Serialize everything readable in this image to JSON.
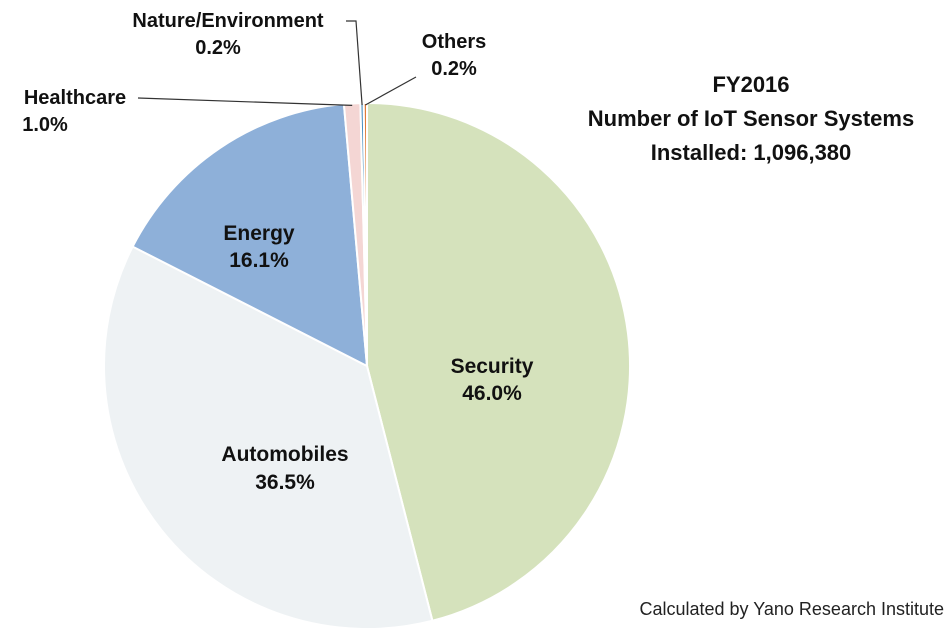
{
  "chart_data": {
    "type": "pie",
    "title_lines": [
      "FY2016",
      "Number of IoT Sensor Systems",
      "Installed: 1,096,380"
    ],
    "source": "Calculated by Yano Research Institute",
    "start_angle_deg": 0,
    "direction": "clockwise",
    "slices": [
      {
        "name": "Security",
        "value": 46.0,
        "label": "46.0%",
        "color": "#d5e2bc"
      },
      {
        "name": "Automobiles",
        "value": 36.5,
        "label": "36.5%",
        "color": "#eef2f4"
      },
      {
        "name": "Energy",
        "value": 16.1,
        "label": "16.1%",
        "color": "#8eb0d9"
      },
      {
        "name": "Healthcare",
        "value": 1.0,
        "label": "1.0%",
        "color": "#f4d6d4"
      },
      {
        "name": "Nature/Environment",
        "value": 0.2,
        "label": "0.2%",
        "color": "#4a8fc2"
      },
      {
        "name": "Others",
        "value": 0.2,
        "label": "0.2%",
        "color": "#e07b39"
      }
    ]
  }
}
